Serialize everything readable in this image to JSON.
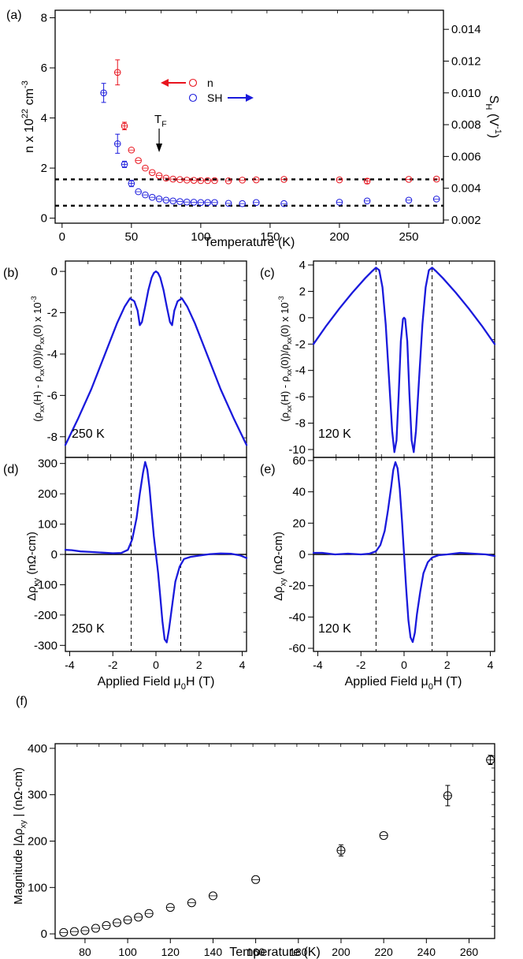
{
  "figure": {
    "panel_labels": [
      "(a)",
      "(b)",
      "(c)",
      "(d)",
      "(e)",
      "(f)"
    ]
  },
  "colors": {
    "red": "#e8141e",
    "blue": "#1a1adc",
    "black": "#000000"
  },
  "chart_data": [
    {
      "panel": "(a)",
      "type": "scatter",
      "xlabel": "Temperature (K)",
      "ylabel": "n x 10^22 cm^-3",
      "y2label": "S_H (V^-1)",
      "xlim": [
        -5,
        275
      ],
      "ylim": [
        -0.2,
        8.3
      ],
      "y2lim": [
        0.0018,
        0.0152
      ],
      "xticks": [
        0,
        50,
        100,
        150,
        200,
        250
      ],
      "yticks": [
        0,
        2,
        4,
        6,
        8
      ],
      "y2ticks": [
        "0.002",
        "0.004",
        "0.006",
        "0.008",
        "0.010",
        "0.012",
        "0.014"
      ],
      "y2tick_values": [
        0.002,
        0.004,
        0.006,
        0.008,
        0.01,
        0.012,
        0.014
      ],
      "annotation": "T_F",
      "annotation_x": 70,
      "legend": [
        {
          "name": "n",
          "arrow": "left",
          "color": "red"
        },
        {
          "name": "SH",
          "arrow": "right",
          "color": "blue"
        }
      ],
      "dashed_lines_y": [
        1.55,
        0.5
      ],
      "series": [
        {
          "name": "n",
          "axis": "left",
          "color": "red",
          "x": [
            40,
            45,
            50,
            55,
            60,
            65,
            70,
            75,
            80,
            85,
            90,
            95,
            100,
            105,
            110,
            120,
            130,
            140,
            160,
            200,
            220,
            250,
            270
          ],
          "y": [
            5.82,
            3.68,
            2.72,
            2.3,
            2.0,
            1.82,
            1.7,
            1.6,
            1.56,
            1.54,
            1.52,
            1.51,
            1.5,
            1.5,
            1.5,
            1.49,
            1.52,
            1.53,
            1.55,
            1.53,
            1.48,
            1.55,
            1.56
          ],
          "err": [
            0.5,
            0.15,
            0.08,
            0.06,
            0.05,
            0.04,
            0.03,
            0.02,
            0.02,
            0.02,
            0.02,
            0.02,
            0.02,
            0.02,
            0.02,
            0.08,
            0.02,
            0.02,
            0.02,
            0.02,
            0.1,
            0.02,
            0.02
          ]
        },
        {
          "name": "SH",
          "axis": "right",
          "color": "blue",
          "x": [
            30,
            40,
            45,
            50,
            55,
            60,
            65,
            70,
            75,
            80,
            85,
            90,
            95,
            100,
            105,
            110,
            120,
            130,
            140,
            160,
            200,
            220,
            250,
            270
          ],
          "y": [
            0.01,
            0.0068,
            0.0055,
            0.0043,
            0.00378,
            0.00358,
            0.00343,
            0.00333,
            0.00325,
            0.0032,
            0.00316,
            0.00313,
            0.00312,
            0.0031,
            0.0031,
            0.0031,
            0.00305,
            0.00303,
            0.0031,
            0.00303,
            0.00312,
            0.0032,
            0.00325,
            0.00332
          ],
          "err": [
            0.0006,
            0.0006,
            0.0002,
            0.0002,
            0.0001,
            6e-05,
            5e-05,
            4e-05,
            3e-05,
            3e-05,
            3e-05,
            3e-05,
            3e-05,
            3e-05,
            3e-05,
            3e-05,
            5e-05,
            3e-05,
            3e-05,
            3e-05,
            5e-05,
            6e-05,
            8e-05,
            8e-05
          ]
        }
      ]
    },
    {
      "panel": "(b)",
      "type": "line",
      "ylabel": "(ρxx(H) - ρxx(0))/ρxx(0)  x 10^-3",
      "xlim": [
        -4.2,
        4.2
      ],
      "ylim": [
        -9,
        0.5
      ],
      "yticks": [
        0,
        -2,
        -4,
        -6,
        -8
      ],
      "temperature_label": "250 K",
      "color": "blue",
      "dashed_x": [
        -1.15,
        1.15
      ],
      "x": [
        -4.2,
        -3.6,
        -3.0,
        -2.4,
        -1.8,
        -1.45,
        -1.2,
        -1.0,
        -0.85,
        -0.75,
        -0.65,
        -0.5,
        -0.35,
        -0.2,
        -0.1,
        0.0,
        0.1,
        0.2,
        0.35,
        0.5,
        0.65,
        0.75,
        0.85,
        1.0,
        1.2,
        1.45,
        1.8,
        2.4,
        3.0,
        3.6,
        4.2
      ],
      "y": [
        -8.4,
        -7.1,
        -5.7,
        -4.1,
        -2.5,
        -1.7,
        -1.3,
        -1.45,
        -1.9,
        -2.6,
        -2.45,
        -1.7,
        -0.9,
        -0.3,
        -0.08,
        0.0,
        -0.08,
        -0.3,
        -0.9,
        -1.7,
        -2.45,
        -2.6,
        -1.9,
        -1.45,
        -1.3,
        -1.7,
        -2.5,
        -4.1,
        -5.7,
        -7.1,
        -8.4
      ]
    },
    {
      "panel": "(c)",
      "type": "line",
      "ylabel": "(ρxx(H) - ρxx(0))/ρxx(0)  x 10^-3",
      "xlim": [
        -4.2,
        4.2
      ],
      "ylim": [
        -10.6,
        4.3
      ],
      "yticks": [
        4,
        2,
        0,
        -2,
        -4,
        -6,
        -8,
        -10
      ],
      "temperature_label": "120 K",
      "color": "blue",
      "dashed_x": [
        -1.3,
        1.3
      ],
      "x": [
        -4.2,
        -3.6,
        -3.0,
        -2.4,
        -1.8,
        -1.5,
        -1.3,
        -1.15,
        -1.0,
        -0.85,
        -0.7,
        -0.55,
        -0.45,
        -0.35,
        -0.25,
        -0.15,
        -0.05,
        0.0,
        0.05,
        0.15,
        0.25,
        0.35,
        0.45,
        0.55,
        0.7,
        0.85,
        1.0,
        1.15,
        1.3,
        1.5,
        1.8,
        2.4,
        3.0,
        3.6,
        4.2
      ],
      "y": [
        -2.0,
        -0.6,
        0.7,
        1.9,
        3.0,
        3.5,
        3.8,
        3.6,
        2.3,
        -0.5,
        -4.5,
        -8.6,
        -10.2,
        -9.3,
        -5.8,
        -1.8,
        -0.1,
        0.0,
        -0.1,
        -1.8,
        -5.8,
        -9.3,
        -10.2,
        -8.6,
        -4.5,
        -0.5,
        2.3,
        3.6,
        3.8,
        3.5,
        3.0,
        1.9,
        0.7,
        -0.6,
        -2.0
      ]
    },
    {
      "panel": "(d)",
      "type": "line",
      "xlabel": "Applied Field μ0H (T)",
      "ylabel": "Δρxy  (nΩ-cm)",
      "xlim": [
        -4.2,
        4.2
      ],
      "ylim": [
        -320,
        320
      ],
      "xticks": [
        -4,
        -2,
        0,
        2,
        4
      ],
      "yticks": [
        300,
        200,
        100,
        0,
        -100,
        -200,
        -300
      ],
      "temperature_label": "250 K",
      "color": "blue",
      "dashed_x": [
        -1.15,
        1.15
      ],
      "x": [
        -4.2,
        -3.9,
        -3.5,
        -3.0,
        -2.5,
        -2.0,
        -1.6,
        -1.3,
        -1.1,
        -0.9,
        -0.75,
        -0.6,
        -0.5,
        -0.4,
        -0.3,
        -0.2,
        -0.1,
        0.0,
        0.1,
        0.2,
        0.3,
        0.4,
        0.5,
        0.6,
        0.75,
        0.9,
        1.1,
        1.3,
        1.6,
        2.0,
        2.5,
        3.0,
        3.5,
        3.9,
        4.2
      ],
      "y": [
        15,
        14,
        10,
        8,
        6,
        4,
        5,
        15,
        50,
        120,
        200,
        270,
        305,
        280,
        220,
        140,
        60,
        0,
        -60,
        -140,
        -220,
        -280,
        -290,
        -250,
        -170,
        -90,
        -40,
        -15,
        -8,
        -4,
        1,
        3,
        2,
        -3,
        -12
      ]
    },
    {
      "panel": "(e)",
      "type": "line",
      "xlabel": "Applied Field μ0H (T)",
      "ylabel": "Δρxy  (nΩ-cm)",
      "xlim": [
        -4.2,
        4.2
      ],
      "ylim": [
        -62,
        62
      ],
      "xticks": [
        -4,
        -2,
        0,
        2,
        4
      ],
      "yticks": [
        60,
        40,
        20,
        0,
        -20,
        -40,
        -60
      ],
      "temperature_label": "120 K",
      "color": "blue",
      "dashed_x": [
        -1.3,
        1.3
      ],
      "x": [
        -4.2,
        -3.8,
        -3.2,
        -2.6,
        -2.0,
        -1.6,
        -1.3,
        -1.1,
        -0.9,
        -0.75,
        -0.6,
        -0.5,
        -0.4,
        -0.3,
        -0.2,
        -0.1,
        0.0,
        0.1,
        0.2,
        0.3,
        0.4,
        0.5,
        0.6,
        0.75,
        0.9,
        1.1,
        1.3,
        1.6,
        2.0,
        2.6,
        3.2,
        3.8,
        4.2
      ],
      "y": [
        1,
        1,
        0,
        0.5,
        0,
        0.5,
        2,
        6,
        15,
        28,
        43,
        54,
        59,
        55,
        42,
        22,
        0,
        -22,
        -42,
        -53,
        -56,
        -50,
        -38,
        -24,
        -12,
        -5,
        -2,
        -0.5,
        0,
        1,
        0.5,
        0,
        -1
      ]
    },
    {
      "panel": "(f)",
      "type": "scatter",
      "xlabel": "Temperature (K)",
      "ylabel": "Magnitude |Δρxy |  (nΩ-cm)",
      "xlim": [
        66,
        272
      ],
      "ylim": [
        -10,
        410
      ],
      "xticks": [
        80,
        100,
        120,
        140,
        160,
        180,
        200,
        220,
        240,
        260
      ],
      "yticks": [
        0,
        100,
        200,
        300,
        400
      ],
      "color": "black",
      "x": [
        70,
        75,
        80,
        85,
        90,
        95,
        100,
        105,
        110,
        120,
        130,
        140,
        160,
        200,
        220,
        250,
        270
      ],
      "y": [
        3,
        5,
        7,
        12,
        18,
        24,
        30,
        36,
        44,
        57,
        67,
        82,
        117,
        180,
        212,
        298,
        375
      ],
      "err": [
        4,
        4,
        4,
        4,
        4,
        4,
        4,
        4,
        4,
        4,
        4,
        4,
        4,
        12,
        4,
        22,
        10
      ]
    }
  ]
}
